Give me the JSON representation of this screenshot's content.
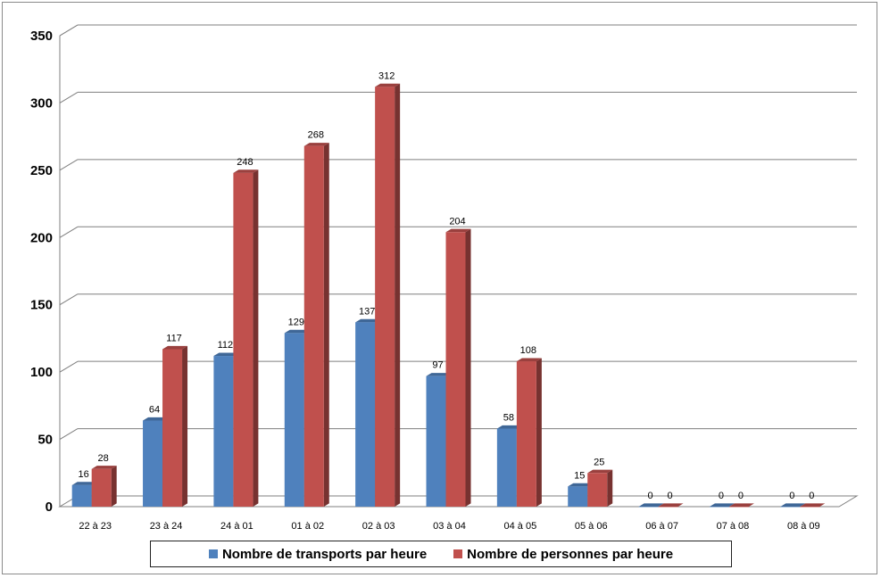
{
  "chart_data": {
    "type": "bar",
    "title": "",
    "xlabel": "",
    "ylabel": "",
    "ylim": [
      0,
      350
    ],
    "yticks": [
      0,
      50,
      100,
      150,
      200,
      250,
      300,
      350
    ],
    "grid": true,
    "legend_position": "bottom",
    "categories": [
      "22 à 23",
      "23 à 24",
      "24 à 01",
      "01 à 02",
      "02 à 03",
      "03 à 04",
      "04 à 05",
      "05 à 06",
      "06 à 07",
      "07 à 08",
      "08 à 09"
    ],
    "series": [
      {
        "name": "Nombre de transports par heure",
        "color": "#4F81BD",
        "values": [
          16,
          64,
          112,
          129,
          137,
          97,
          58,
          15,
          0,
          0,
          0
        ]
      },
      {
        "name": "Nombre de personnes par heure",
        "color": "#C0504D",
        "values": [
          28,
          117,
          248,
          268,
          312,
          204,
          108,
          25,
          0,
          0,
          0
        ]
      }
    ]
  }
}
